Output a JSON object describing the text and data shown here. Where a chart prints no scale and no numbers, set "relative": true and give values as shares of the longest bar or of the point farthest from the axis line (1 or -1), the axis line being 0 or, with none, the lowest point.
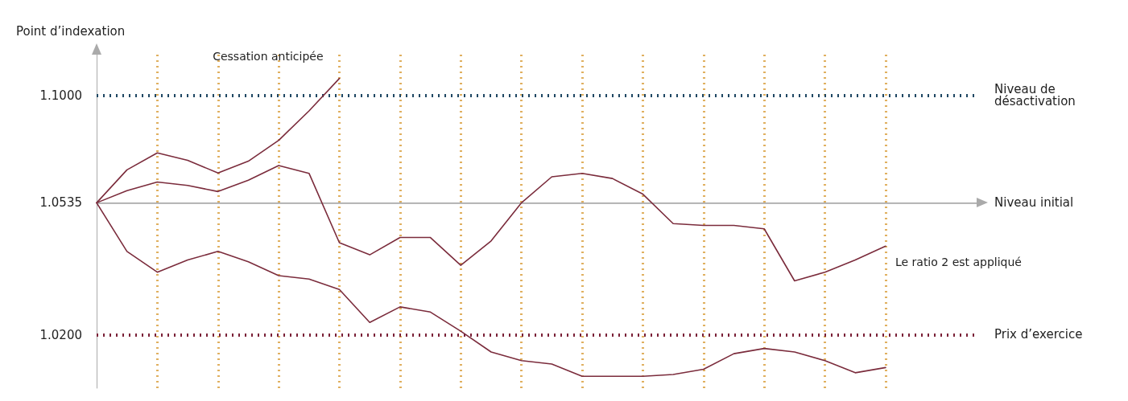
{
  "chart_data": {
    "type": "line",
    "relative": true,
    "ylabel": "Point d’indexation",
    "categories": [
      null,
      null,
      null,
      null,
      null,
      null,
      null,
      null,
      null,
      null,
      null,
      null,
      null,
      null,
      null,
      null,
      null,
      null,
      null,
      null,
      null,
      null,
      null,
      null,
      null,
      null,
      null,
      null,
      null,
      null
    ],
    "grid": "x",
    "marker": "none",
    "line_style": "solid",
    "series": [
      {
        "color": "#7b2c3c",
        "values": [
          0,
          0.19,
          0.288,
          0.245,
          0.172,
          0.24,
          0.36,
          0.53,
          0.717,
          null,
          null,
          null,
          null,
          null,
          null,
          null,
          null,
          null,
          null,
          null,
          null,
          null,
          null,
          null,
          null,
          null,
          null,
          null,
          null,
          null
        ]
      },
      {
        "color": "#7b2c3c",
        "values": [
          0,
          0.07,
          0.12,
          0.1,
          0.065,
          0.13,
          0.215,
          0.17,
          -0.23,
          -0.3,
          -0.2,
          -0.2,
          -0.36,
          -0.22,
          0,
          0.15,
          0.17,
          0.14,
          0.05,
          -0.12,
          -0.13,
          -0.13,
          -0.15,
          -0.45,
          -0.4,
          -0.33,
          -0.25,
          null,
          null,
          null
        ]
      },
      {
        "color": "#7b2c3c",
        "values": [
          0,
          -0.28,
          -0.4,
          -0.33,
          -0.28,
          -0.34,
          -0.42,
          -0.44,
          -0.5,
          -0.69,
          -0.6,
          -0.63,
          -0.74,
          -0.86,
          -0.91,
          -0.93,
          -1,
          -1,
          -1,
          -0.99,
          -0.96,
          -0.87,
          -0.84,
          -0.86,
          -0.91,
          -0.98,
          -0.95,
          null,
          null,
          null
        ]
      }
    ],
    "ref_lines": [
      {
        "axis": "y",
        "value": 0.618,
        "label": "Niveau de désactivation",
        "color": "#1f4763",
        "line_style": "dotted"
      },
      {
        "axis": "y",
        "value": 0,
        "label": "Niveau initial",
        "color": "#aaaaaa",
        "line_style": "solid"
      },
      {
        "axis": "y",
        "value": -0.764,
        "label": "Prix d’exercice",
        "color": "#7b2238",
        "line_style": "dotted"
      }
    ],
    "annotations": [
      "1.1000",
      "1.0535",
      "1.0200",
      "Cessation anticipée",
      "Le ratio 2 est appliqué"
    ]
  }
}
